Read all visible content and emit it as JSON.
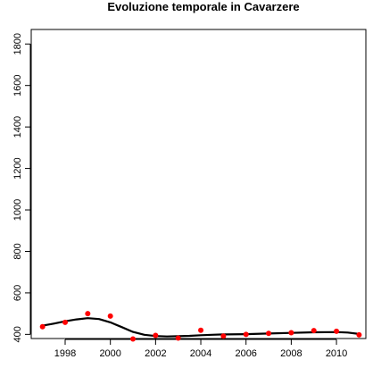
{
  "chart_data": {
    "type": "scatter",
    "title": "Evoluzione temporale in Cavarzere",
    "xlabel": "",
    "ylabel": "",
    "x_ticks": [
      1998,
      2000,
      2002,
      2004,
      2006,
      2008,
      2010
    ],
    "y_ticks": [
      400,
      600,
      800,
      1000,
      1200,
      1400,
      1600,
      1800
    ],
    "xlim": [
      1996.5,
      2011.3
    ],
    "ylim": [
      380,
      1870
    ],
    "grid": false,
    "legend": "none",
    "series": [
      {
        "type": "points",
        "color": "#ff0000",
        "x": [
          1997,
          1998,
          1999,
          2000,
          2001,
          2002,
          2003,
          2004,
          2005,
          2006,
          2007,
          2008,
          2009,
          2010,
          2011
        ],
        "y": [
          437,
          458,
          500,
          488,
          378,
          395,
          382,
          420,
          392,
          400,
          405,
          408,
          418,
          415,
          398
        ]
      },
      {
        "type": "smooth",
        "color": "#000000",
        "x": [
          1997,
          1997.5,
          1998,
          1998.5,
          1999,
          1999.5,
          2000,
          2000.5,
          2001,
          2001.5,
          2002,
          2002.5,
          2003,
          2003.5,
          2004,
          2004.5,
          2005,
          2006,
          2007,
          2008,
          2009,
          2010,
          2010.5,
          2011
        ],
        "y": [
          442,
          452,
          463,
          472,
          478,
          474,
          458,
          435,
          412,
          398,
          392,
          390,
          391,
          393,
          396,
          398,
          400,
          401,
          404,
          407,
          410,
          411,
          409,
          402
        ]
      }
    ]
  }
}
